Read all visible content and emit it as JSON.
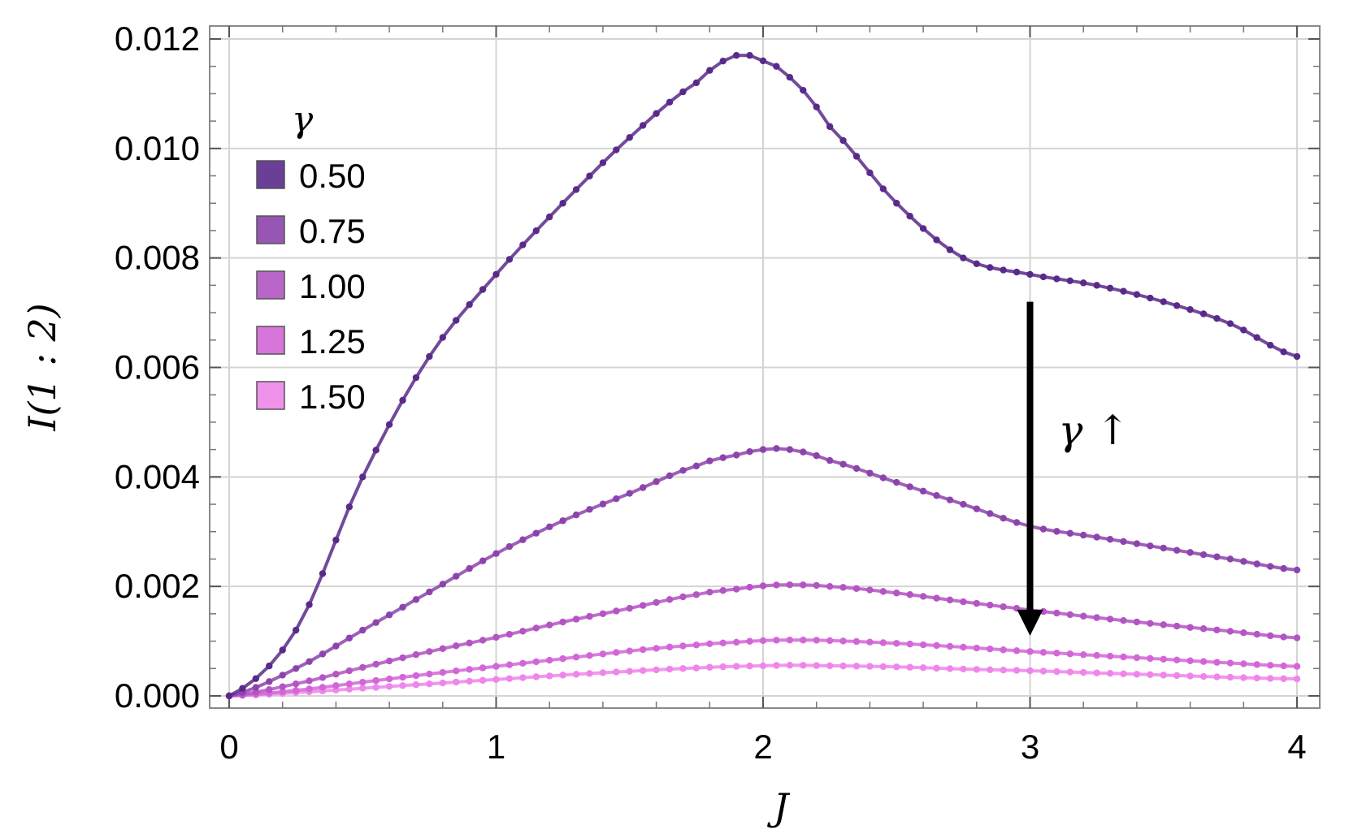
{
  "chart_data": {
    "type": "line",
    "xlabel": "J",
    "ylabel": "I(1 : 2)",
    "xlim": [
      0,
      4
    ],
    "ylim": [
      0,
      0.012
    ],
    "x_ticks": [
      "0",
      "1",
      "2",
      "3",
      "4"
    ],
    "y_ticks": [
      "0.000",
      "0.002",
      "0.004",
      "0.006",
      "0.008",
      "0.010",
      "0.012"
    ],
    "grid": true,
    "legend": {
      "title": "γ",
      "placement": "top-left"
    },
    "annotation": {
      "text": "γ ↑",
      "arrow_x": 3.0,
      "arrow_from_y": 0.0072,
      "arrow_to_y": 0.0011
    },
    "x": [
      0,
      0.25,
      0.5,
      0.75,
      1.0,
      1.25,
      1.5,
      1.75,
      1.9,
      2.0,
      2.1,
      2.25,
      2.5,
      2.75,
      3.0,
      3.25,
      3.5,
      3.75,
      4.0
    ],
    "series": [
      {
        "name": "0.50",
        "color": "#5a2a8a",
        "values": [
          0,
          0.0012,
          0.004,
          0.0062,
          0.0077,
          0.009,
          0.0102,
          0.0112,
          0.0117,
          0.0116,
          0.0113,
          0.0104,
          0.009,
          0.008,
          0.0077,
          0.0075,
          0.0072,
          0.0068,
          0.0062
        ]
      },
      {
        "name": "0.75",
        "color": "#8c44ac",
        "values": [
          0,
          0.0005,
          0.0012,
          0.0019,
          0.0026,
          0.0032,
          0.0037,
          0.0042,
          0.0044,
          0.0045,
          0.0045,
          0.0043,
          0.0039,
          0.0035,
          0.0031,
          0.0029,
          0.0027,
          0.0025,
          0.0023
        ]
      },
      {
        "name": "1.00",
        "color": "#b355c2",
        "values": [
          0,
          0.00022,
          0.00052,
          0.00081,
          0.00107,
          0.00135,
          0.0016,
          0.00185,
          0.00195,
          0.00201,
          0.00203,
          0.002,
          0.00188,
          0.00172,
          0.00157,
          0.00143,
          0.0013,
          0.00118,
          0.00106
        ]
      },
      {
        "name": "1.25",
        "color": "#d366d6",
        "values": [
          0,
          0.0001,
          0.00025,
          0.0004,
          0.00054,
          0.00068,
          0.00082,
          0.00093,
          0.00098,
          0.00101,
          0.00102,
          0.00101,
          0.00096,
          0.00089,
          0.00081,
          0.00074,
          0.00067,
          0.0006,
          0.00054
        ]
      },
      {
        "name": "1.50",
        "color": "#ee86ea",
        "values": [
          0,
          6e-05,
          0.00014,
          0.00022,
          0.0003,
          0.00038,
          0.00045,
          0.00051,
          0.00054,
          0.00055,
          0.00056,
          0.00055,
          0.00053,
          0.00049,
          0.00046,
          0.00042,
          0.00038,
          0.00034,
          0.00031
        ]
      }
    ]
  }
}
